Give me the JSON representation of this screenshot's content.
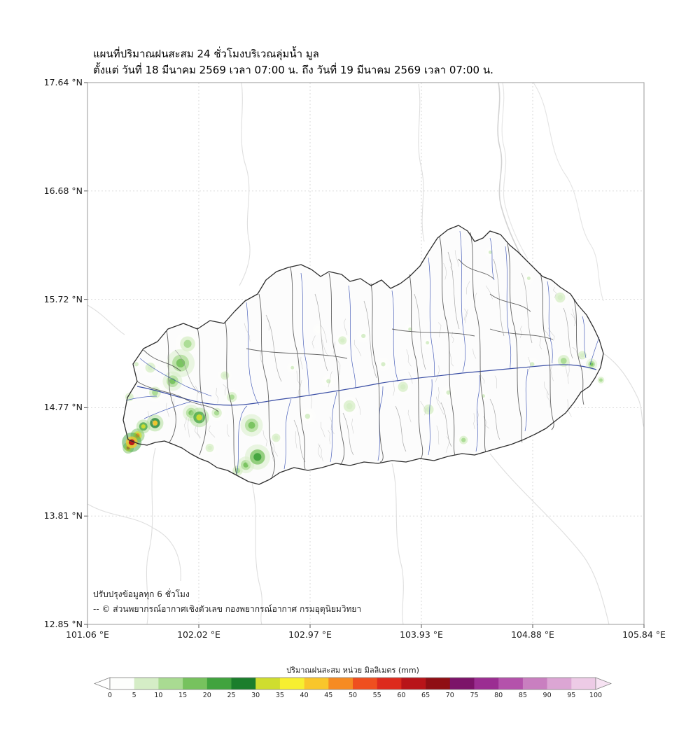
{
  "title": {
    "line1": "แผนที่ปริมาณฝนสะสม 24 ชั่วโมงบริเวณลุ่มน้ำ มูล",
    "line2": "ตั้งแต่ วันที่ 18 มีนาคม 2569 เวลา 07:00 น. ถึง วันที่ 19 มีนาคม 2569 เวลา 07:00 น."
  },
  "axes": {
    "y_ticks": [
      "17.64 °N",
      "16.68 °N",
      "15.72 °N",
      "14.77 °N",
      "13.81 °N",
      "12.85 °N"
    ],
    "x_ticks": [
      "101.06 °E",
      "102.02 °E",
      "102.97 °E",
      "103.93 °E",
      "104.88 °E",
      "105.84 °E"
    ]
  },
  "annotation": {
    "line1": "ปรับปรุงข้อมูลทุก 6 ชั่วโมง",
    "line2": "-- © ส่วนพยากรณ์อากาศเชิงตัวเลข กองพยากรณ์อากาศ กรมอุตุนิยมวิทยา"
  },
  "colorbar": {
    "title": "ปริมาณฝนสะสม หน่วย มิลลิเมตร (mm)",
    "tick_labels": [
      "0",
      "5",
      "10",
      "15",
      "20",
      "25",
      "30",
      "35",
      "40",
      "45",
      "50",
      "55",
      "60",
      "65",
      "70",
      "75",
      "80",
      "85",
      "90",
      "95",
      "100"
    ],
    "segment_colors": [
      "#fdfefc",
      "#d5edc6",
      "#a9db92",
      "#77c25e",
      "#41a33e",
      "#1b7e2c",
      "#cfdd2f",
      "#f7ef30",
      "#f9c62b",
      "#f68b22",
      "#ef4f1f",
      "#dd2a1d",
      "#b81419",
      "#8f0e14",
      "#7c1369",
      "#9b2d92",
      "#b452ab",
      "#c97fc0",
      "#dca6d4",
      "#edcbe6"
    ],
    "under_color": "#ffffff",
    "over_color": "#f7e3f3"
  },
  "chart_data": {
    "type": "map",
    "map_type": "24h accumulated rainfall over Mun river basin",
    "lon_range": [
      101.06,
      105.84
    ],
    "lat_range": [
      12.85,
      17.64
    ],
    "units": "mm",
    "scale_step_mm": 5,
    "scale_max_mm": 100,
    "rain_cells": [
      {
        "lon": 101.92,
        "lat": 15.33,
        "mm": 12,
        "r": 9
      },
      {
        "lon": 101.86,
        "lat": 15.16,
        "mm": 16,
        "r": 10
      },
      {
        "lon": 101.79,
        "lat": 15.0,
        "mm": 18,
        "r": 7
      },
      {
        "lon": 101.6,
        "lat": 15.12,
        "mm": 8,
        "r": 6
      },
      {
        "lon": 101.64,
        "lat": 14.9,
        "mm": 10,
        "r": 7
      },
      {
        "lon": 101.48,
        "lat": 15.15,
        "mm": 6,
        "r": 5
      },
      {
        "lon": 101.42,
        "lat": 14.86,
        "mm": 8,
        "r": 5
      },
      {
        "lon": 102.02,
        "lat": 14.68,
        "mm": 30,
        "r": 7
      },
      {
        "lon": 101.95,
        "lat": 14.72,
        "mm": 18,
        "r": 6
      },
      {
        "lon": 102.17,
        "lat": 14.72,
        "mm": 10,
        "r": 6
      },
      {
        "lon": 101.64,
        "lat": 14.63,
        "mm": 42,
        "r": 6
      },
      {
        "lon": 101.54,
        "lat": 14.6,
        "mm": 32,
        "r": 5
      },
      {
        "lon": 101.44,
        "lat": 14.46,
        "mm": 60,
        "r": 7
      },
      {
        "lon": 101.49,
        "lat": 14.52,
        "mm": 45,
        "r": 5
      },
      {
        "lon": 101.41,
        "lat": 14.41,
        "mm": 50,
        "r": 4
      },
      {
        "lon": 102.47,
        "lat": 14.61,
        "mm": 16,
        "r": 8
      },
      {
        "lon": 102.52,
        "lat": 14.33,
        "mm": 22,
        "r": 9
      },
      {
        "lon": 102.42,
        "lat": 14.26,
        "mm": 15,
        "r": 6
      },
      {
        "lon": 102.35,
        "lat": 14.21,
        "mm": 12,
        "r": 6
      },
      {
        "lon": 102.11,
        "lat": 14.41,
        "mm": 8,
        "r": 5
      },
      {
        "lon": 102.68,
        "lat": 14.5,
        "mm": 8,
        "r": 5
      },
      {
        "lon": 102.95,
        "lat": 14.69,
        "mm": 6,
        "r": 6
      },
      {
        "lon": 103.13,
        "lat": 15.0,
        "mm": 5,
        "r": 5
      },
      {
        "lon": 103.31,
        "lat": 14.78,
        "mm": 8,
        "r": 7
      },
      {
        "lon": 103.43,
        "lat": 15.4,
        "mm": 6,
        "r": 5
      },
      {
        "lon": 103.25,
        "lat": 15.36,
        "mm": 8,
        "r": 5
      },
      {
        "lon": 103.6,
        "lat": 15.15,
        "mm": 6,
        "r": 5
      },
      {
        "lon": 103.77,
        "lat": 14.95,
        "mm": 8,
        "r": 6
      },
      {
        "lon": 103.99,
        "lat": 14.75,
        "mm": 8,
        "r": 6
      },
      {
        "lon": 103.83,
        "lat": 15.46,
        "mm": 5,
        "r": 4
      },
      {
        "lon": 103.98,
        "lat": 15.34,
        "mm": 5,
        "r": 4
      },
      {
        "lon": 104.16,
        "lat": 14.9,
        "mm": 5,
        "r": 5
      },
      {
        "lon": 104.29,
        "lat": 14.48,
        "mm": 14,
        "r": 5
      },
      {
        "lon": 104.46,
        "lat": 14.87,
        "mm": 5,
        "r": 4
      },
      {
        "lon": 104.52,
        "lat": 16.14,
        "mm": 5,
        "r": 4
      },
      {
        "lon": 104.85,
        "lat": 15.91,
        "mm": 6,
        "r": 4
      },
      {
        "lon": 105.12,
        "lat": 15.74,
        "mm": 8,
        "r": 6
      },
      {
        "lon": 104.88,
        "lat": 15.15,
        "mm": 5,
        "r": 5
      },
      {
        "lon": 105.15,
        "lat": 15.18,
        "mm": 12,
        "r": 7
      },
      {
        "lon": 105.31,
        "lat": 15.23,
        "mm": 8,
        "r": 5
      },
      {
        "lon": 105.39,
        "lat": 15.15,
        "mm": 16,
        "r": 4
      },
      {
        "lon": 105.47,
        "lat": 15.01,
        "mm": 10,
        "r": 4
      },
      {
        "lon": 102.82,
        "lat": 15.12,
        "mm": 5,
        "r": 4
      },
      {
        "lon": 103.04,
        "lat": 15.46,
        "mm": 4,
        "r": 4
      },
      {
        "lon": 102.3,
        "lat": 14.86,
        "mm": 14,
        "r": 6
      },
      {
        "lon": 102.24,
        "lat": 15.05,
        "mm": 8,
        "r": 5
      }
    ]
  }
}
